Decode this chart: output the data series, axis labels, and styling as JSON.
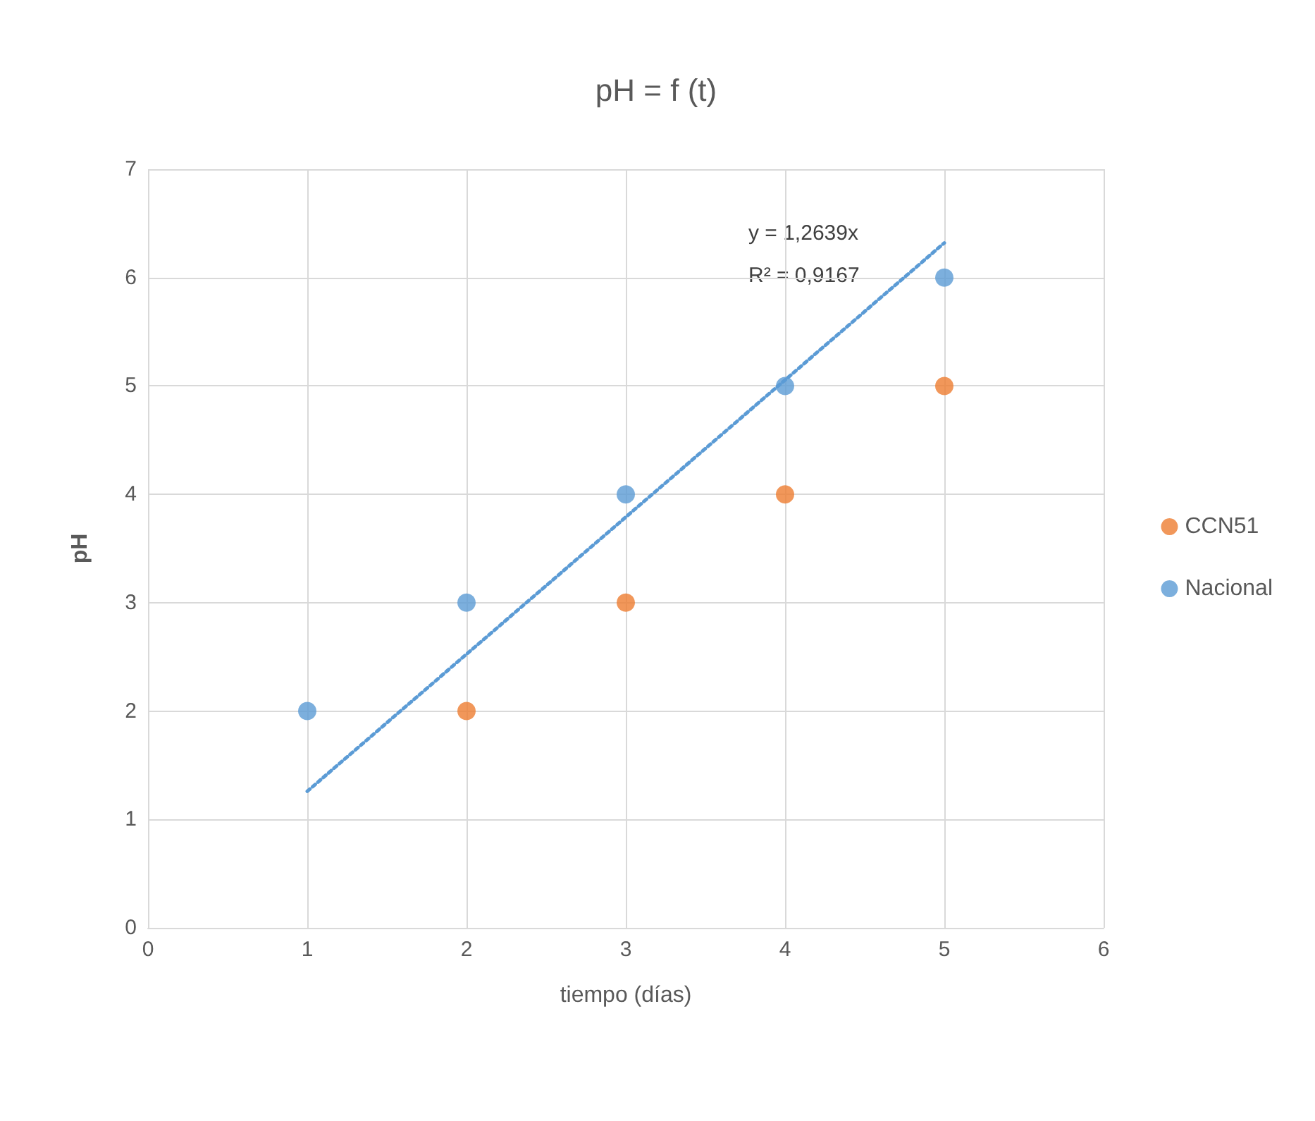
{
  "chart_data": {
    "type": "scatter",
    "title": "pH = f (t)",
    "xlabel": "tiempo (días)",
    "ylabel": "pH",
    "xlim": [
      0,
      6
    ],
    "xticks": [
      0,
      1,
      2,
      3,
      4,
      5,
      6
    ],
    "ylim": [
      0,
      7
    ],
    "yticks": [
      0,
      1,
      2,
      3,
      4,
      5,
      6,
      7
    ],
    "grid": true,
    "legend": "right",
    "marker": "circle",
    "series": [
      {
        "name": "CCN51",
        "color": "#ed7d31",
        "x": [
          2,
          3,
          4,
          5
        ],
        "values": [
          2,
          3,
          4,
          5
        ]
      },
      {
        "name": "Nacional",
        "color": "#5b9bd5",
        "x": [
          1,
          2,
          3,
          4,
          5
        ],
        "values": [
          2,
          3,
          4,
          5,
          6
        ]
      },
      {
        "type": "line",
        "color": "#5b9bd5",
        "line_style": "dotted",
        "marker": "none",
        "x": [
          1,
          5
        ],
        "values": [
          1.26,
          6.32
        ]
      }
    ],
    "annotations": [
      "y = 1,2639x",
      "R² = 0,9167"
    ]
  }
}
